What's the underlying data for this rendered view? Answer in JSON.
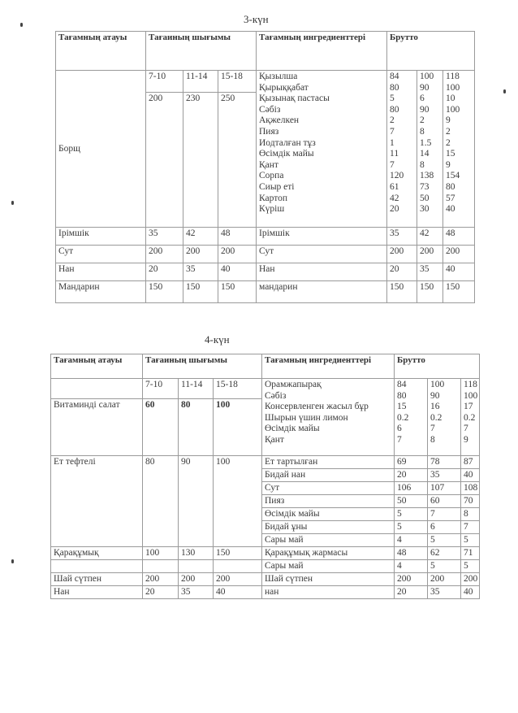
{
  "day3": {
    "title": "3-күн",
    "headers": {
      "name": "Тағамның атауы",
      "yield": "Тағаиның шығымы",
      "ingredients": "Тағамның ингредиенттері",
      "brutto": "Брутто"
    },
    "ages": [
      "7-10",
      "11-14",
      "15-18"
    ],
    "borsch": {
      "name": "Борщ",
      "yield": [
        "200",
        "230",
        "250"
      ],
      "ingredients": [
        "Қызылша",
        "Қырыққабат",
        "Қызынақ пастасы",
        "Сәбіз",
        "Ақжелкен",
        "Пияз",
        "Иодталған тұз",
        "Өсімдік майы",
        "Қант",
        "Сорпа",
        "Сиыр еті",
        "Картоп",
        "Күріш"
      ],
      "brutto": [
        [
          "84",
          "80",
          "5",
          "80",
          "2",
          "7",
          "1",
          "11",
          "7",
          "120",
          "61",
          "42",
          "20"
        ],
        [
          "100",
          "90",
          "6",
          "90",
          "2",
          "8",
          "1.5",
          "14",
          "8",
          "138",
          "73",
          "50",
          "30"
        ],
        [
          "118",
          "100",
          "10",
          "100",
          "9",
          "2",
          "2",
          "15",
          "9",
          "154",
          "80",
          "57",
          "40"
        ]
      ]
    },
    "rows": [
      {
        "name": "Ірімшік",
        "yield": [
          "35",
          "42",
          "48"
        ],
        "ingredient": "Ірімшік",
        "brutto": [
          "35",
          "42",
          "48"
        ]
      },
      {
        "name": "Сут",
        "yield": [
          "200",
          "200",
          "200"
        ],
        "ingredient": "Сут",
        "brutto": [
          "200",
          "200",
          "200"
        ]
      },
      {
        "name": "Нан",
        "yield": [
          "20",
          "35",
          "40"
        ],
        "ingredient": "Нан",
        "brutto": [
          "20",
          "35",
          "40"
        ]
      },
      {
        "name": "Мандарин",
        "yield": [
          "150",
          "150",
          "150"
        ],
        "ingredient": "мандарин",
        "brutto": [
          "150",
          "150",
          "150"
        ]
      }
    ]
  },
  "day4": {
    "title": "4-күн",
    "headers": {
      "name": "Тағамның атауы",
      "yield": "Тағаиның шығымы",
      "ingredients": "Тағамның ингредиенттері",
      "brutto": "Брутто"
    },
    "ages": [
      "7-10",
      "11-14",
      "15-18"
    ],
    "salad": {
      "name": "Витаминді салат",
      "yield": [
        "60",
        "80",
        "100"
      ],
      "ingredients": [
        "Орамжапырақ",
        "Сәбіз",
        "Консервленген жасыл бұр",
        "Шырын үшин лимон",
        "Өсімдік майы",
        "Қант"
      ],
      "brutto": [
        [
          "84",
          "80",
          "15",
          "0.2",
          "6",
          "7"
        ],
        [
          "100",
          "90",
          "16",
          "0.2",
          "7",
          "8"
        ],
        [
          "118",
          "100",
          "17",
          "0.2",
          "7",
          "9"
        ]
      ]
    },
    "meatballs": {
      "name": "Ет  тефтелі",
      "yield": [
        "80",
        "90",
        "100"
      ],
      "rows": [
        {
          "ingredient": "Ет тартылған",
          "brutto": [
            "69",
            "78",
            "87"
          ]
        },
        {
          "ingredient": "Бидай нан",
          "brutto": [
            "20",
            "35",
            "40"
          ]
        },
        {
          "ingredient": "Сут",
          "brutto": [
            "106",
            "107",
            "108"
          ]
        },
        {
          "ingredient": "Пияз",
          "brutto": [
            "50",
            "60",
            "70"
          ]
        },
        {
          "ingredient": "Өсімдік майы",
          "brutto": [
            "5",
            "7",
            "8"
          ]
        },
        {
          "ingredient": "Бидай ұны",
          "brutto": [
            "5",
            "6",
            "7"
          ]
        },
        {
          "ingredient": "Сары май",
          "brutto": [
            "4",
            "5",
            "5"
          ]
        }
      ]
    },
    "rows": [
      {
        "name": "Қарақұмық",
        "yield": [
          "100",
          "130",
          "150"
        ],
        "ingredient": "Қарақұмық жармасы",
        "brutto": [
          "48",
          "62",
          "71"
        ]
      },
      {
        "name": "",
        "yield": [
          "",
          "",
          ""
        ],
        "ingredient": "Сары май",
        "brutto": [
          "4",
          "5",
          "5"
        ]
      },
      {
        "name": "Шай сүтпен",
        "yield": [
          "200",
          "200",
          "200"
        ],
        "ingredient": "Шай сүтпен",
        "brutto": [
          "200",
          "200",
          "200"
        ]
      },
      {
        "name": "Нан",
        "yield": [
          "20",
          "35",
          "40"
        ],
        "ingredient": "нан",
        "brutto": [
          "20",
          "35",
          "40"
        ]
      }
    ]
  }
}
